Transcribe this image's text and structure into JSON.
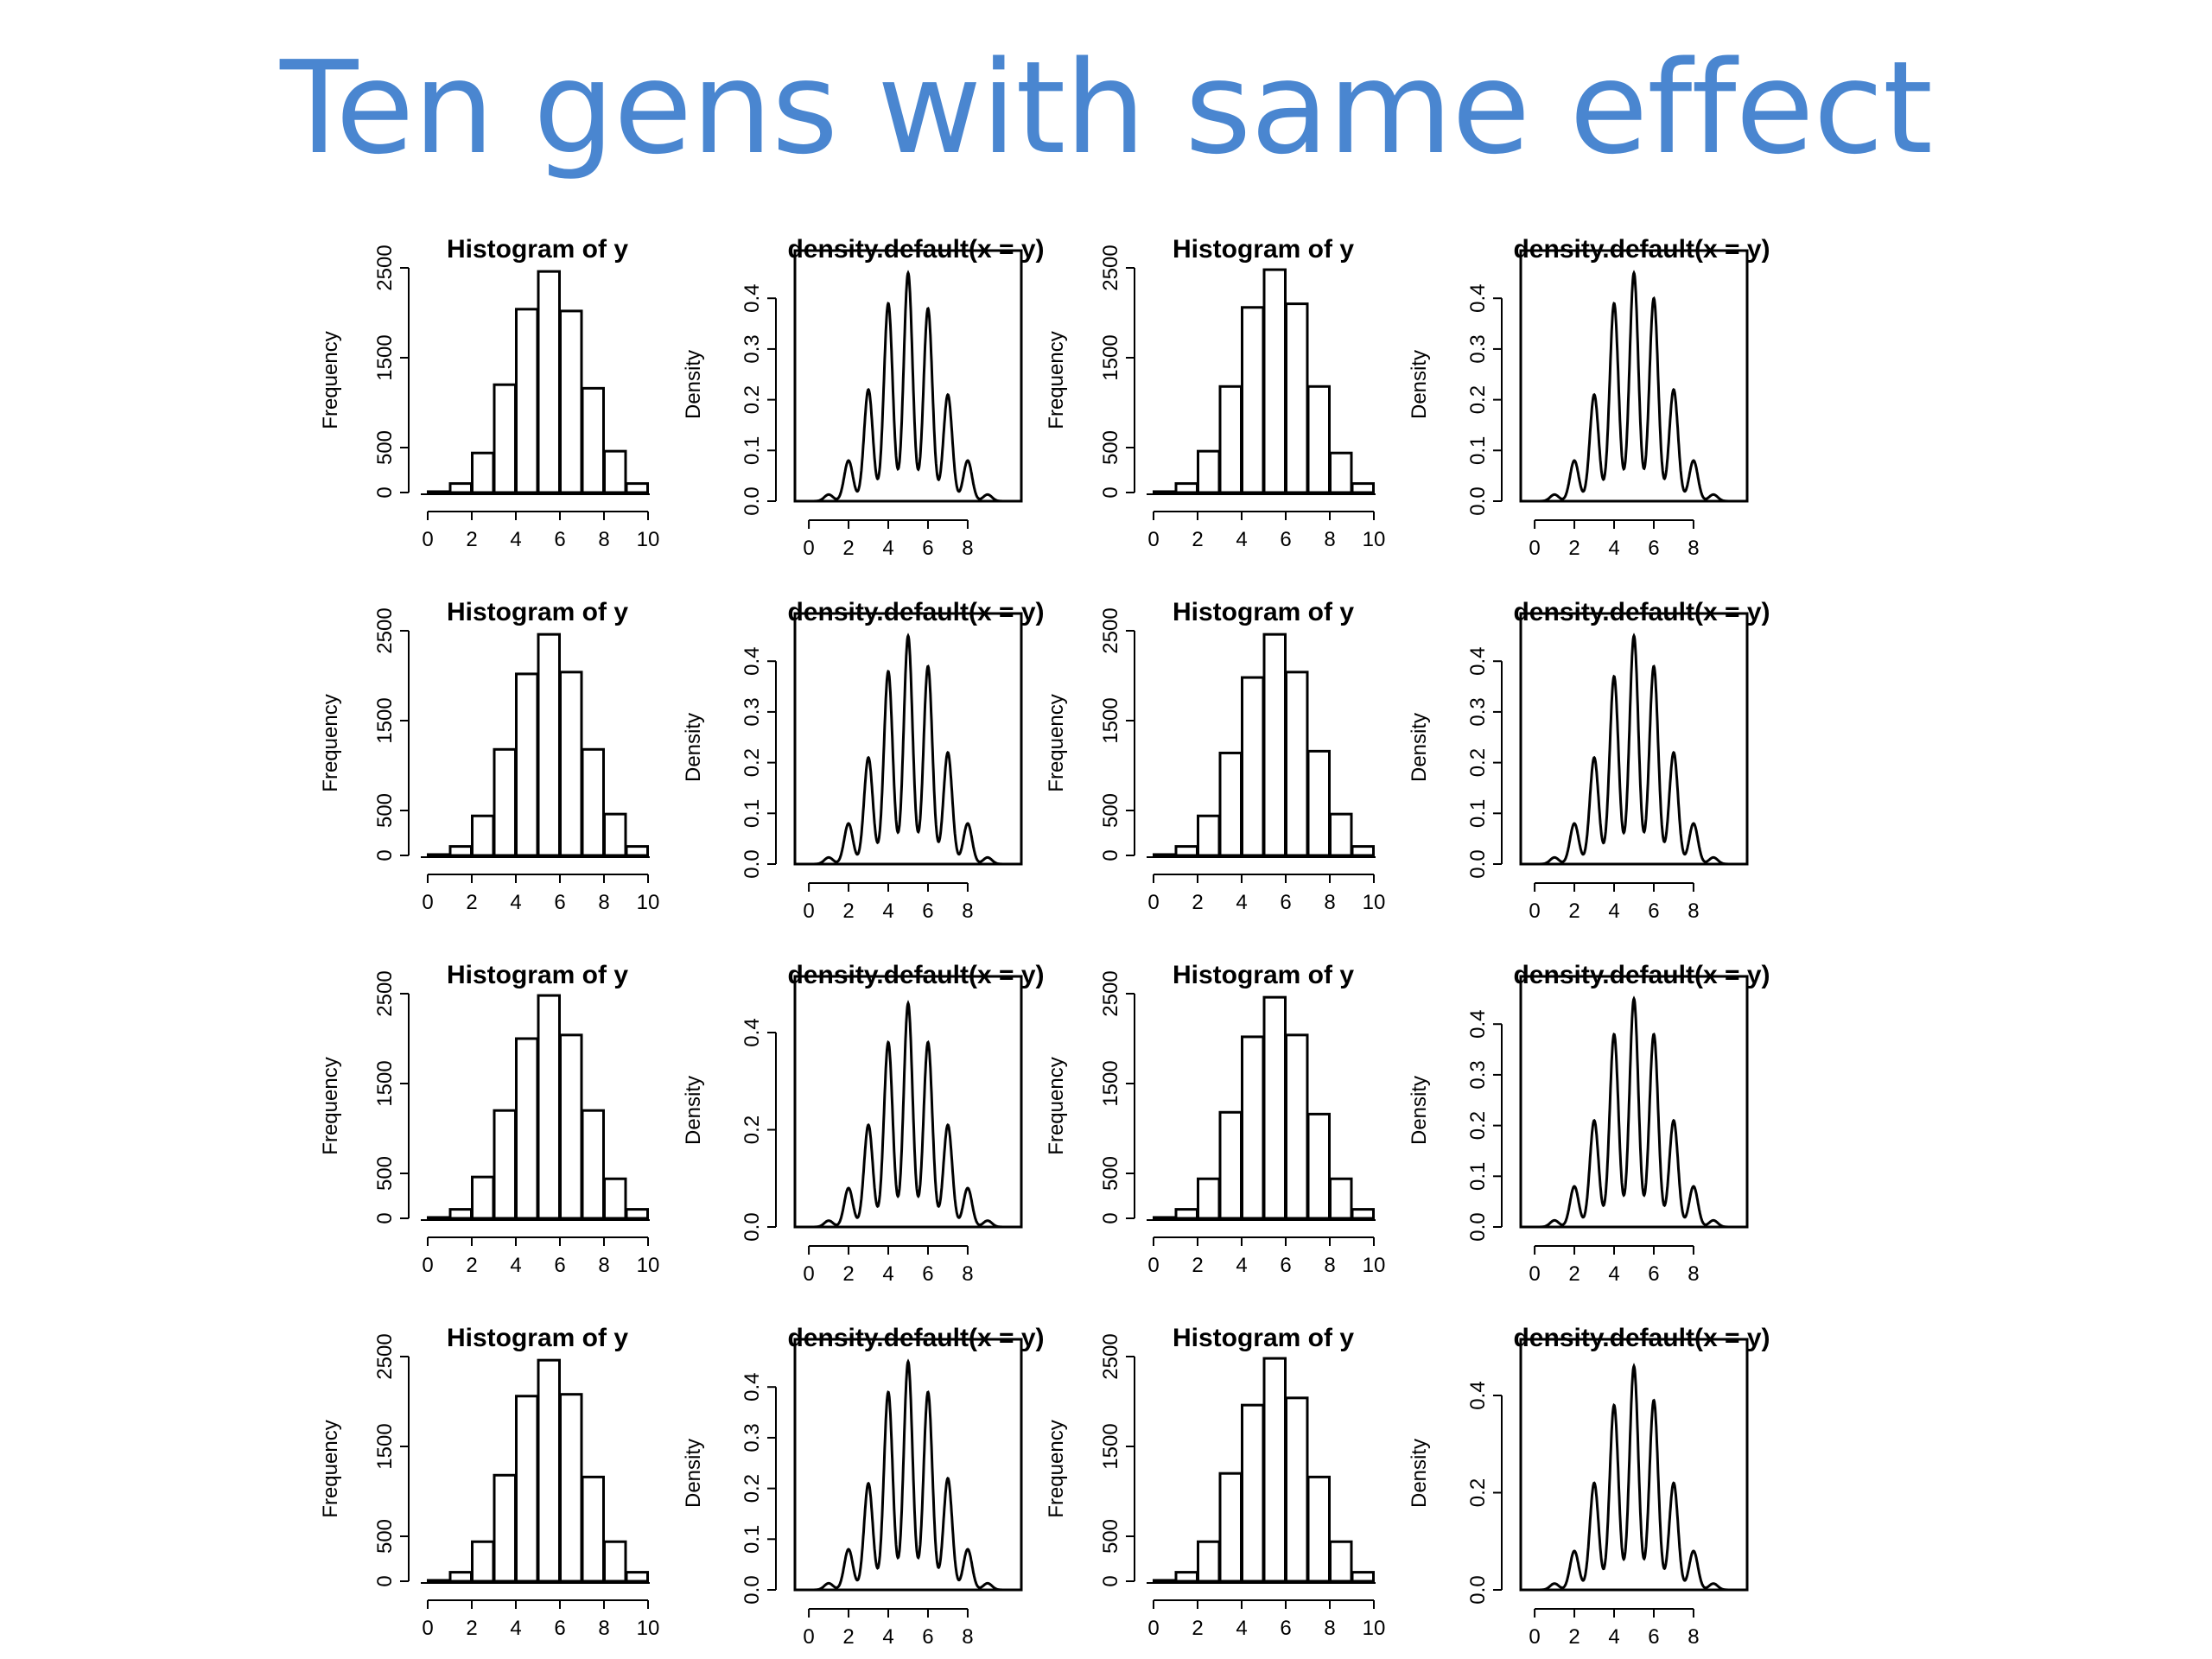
{
  "slide": {
    "title": "Ten gens with same effect"
  },
  "chart_data": [
    {
      "type": "bar",
      "kind": "histogram",
      "title": "Histogram of y",
      "xlabel": "",
      "ylabel": "Frequency",
      "xlim": [
        0,
        10
      ],
      "ylim": [
        0,
        2500
      ],
      "xticks": [
        0,
        2,
        4,
        6,
        8,
        10
      ],
      "yticks": [
        0,
        500,
        1500,
        2500
      ],
      "bins": [
        [
          0,
          1
        ],
        [
          1,
          2
        ],
        [
          2,
          3
        ],
        [
          3,
          4
        ],
        [
          4,
          5
        ],
        [
          5,
          6
        ],
        [
          6,
          7
        ],
        [
          7,
          8
        ],
        [
          8,
          9
        ],
        [
          9,
          10
        ]
      ],
      "values": [
        10,
        100,
        440,
        1200,
        2040,
        2460,
        2020,
        1160,
        460,
        100
      ],
      "grid": false,
      "legend": "none"
    },
    {
      "type": "line",
      "kind": "density",
      "title": "density.default(x = y)",
      "xlabel": "",
      "ylabel": "Density",
      "xlim": [
        -0.7,
        10.7
      ],
      "ylim": [
        0,
        0.46
      ],
      "xticks": [
        0,
        2,
        4,
        6,
        8
      ],
      "yticks": [
        0.0,
        0.1,
        0.2,
        0.3,
        0.4
      ],
      "peaks_x": [
        1,
        2,
        3,
        4,
        5,
        6,
        7,
        8,
        9
      ],
      "peaks_y": [
        0.013,
        0.08,
        0.22,
        0.39,
        0.45,
        0.38,
        0.21,
        0.08,
        0.013
      ],
      "grid": false,
      "legend": "none"
    },
    {
      "type": "bar",
      "kind": "histogram",
      "title": "Histogram of y",
      "xlabel": "",
      "ylabel": "Frequency",
      "xlim": [
        0,
        10
      ],
      "ylim": [
        0,
        2500
      ],
      "xticks": [
        0,
        2,
        4,
        6,
        8,
        10
      ],
      "yticks": [
        0,
        500,
        1500,
        2500
      ],
      "bins": [
        [
          0,
          1
        ],
        [
          1,
          2
        ],
        [
          2,
          3
        ],
        [
          3,
          4
        ],
        [
          4,
          5
        ],
        [
          5,
          6
        ],
        [
          6,
          7
        ],
        [
          7,
          8
        ],
        [
          8,
          9
        ],
        [
          9,
          10
        ]
      ],
      "values": [
        10,
        100,
        460,
        1180,
        2060,
        2480,
        2100,
        1180,
        440,
        100
      ],
      "grid": false,
      "legend": "none"
    },
    {
      "type": "line",
      "kind": "density",
      "title": "density.default(x = y)",
      "xlabel": "",
      "ylabel": "Density",
      "xlim": [
        -0.7,
        10.7
      ],
      "ylim": [
        0,
        0.46
      ],
      "xticks": [
        0,
        2,
        4,
        6,
        8
      ],
      "yticks": [
        0.0,
        0.1,
        0.2,
        0.3,
        0.4
      ],
      "peaks_x": [
        1,
        2,
        3,
        4,
        5,
        6,
        7,
        8,
        9
      ],
      "peaks_y": [
        0.013,
        0.08,
        0.21,
        0.39,
        0.45,
        0.4,
        0.22,
        0.08,
        0.013
      ],
      "grid": false,
      "legend": "none"
    },
    {
      "type": "bar",
      "kind": "histogram",
      "title": "Histogram of y",
      "xlabel": "",
      "ylabel": "Frequency",
      "xlim": [
        0,
        10
      ],
      "ylim": [
        0,
        2500
      ],
      "xticks": [
        0,
        2,
        4,
        6,
        8,
        10
      ],
      "yticks": [
        0,
        500,
        1500,
        2500
      ],
      "bins": [
        [
          0,
          1
        ],
        [
          1,
          2
        ],
        [
          2,
          3
        ],
        [
          3,
          4
        ],
        [
          4,
          5
        ],
        [
          5,
          6
        ],
        [
          6,
          7
        ],
        [
          7,
          8
        ],
        [
          8,
          9
        ],
        [
          9,
          10
        ]
      ],
      "values": [
        10,
        100,
        440,
        1180,
        2020,
        2460,
        2040,
        1180,
        460,
        100
      ],
      "grid": false,
      "legend": "none"
    },
    {
      "type": "line",
      "kind": "density",
      "title": "density.default(x = y)",
      "xlabel": "",
      "ylabel": "Density",
      "xlim": [
        -0.7,
        10.7
      ],
      "ylim": [
        0,
        0.46
      ],
      "xticks": [
        0,
        2,
        4,
        6,
        8
      ],
      "yticks": [
        0.0,
        0.1,
        0.2,
        0.3,
        0.4
      ],
      "peaks_x": [
        1,
        2,
        3,
        4,
        5,
        6,
        7,
        8,
        9
      ],
      "peaks_y": [
        0.013,
        0.08,
        0.21,
        0.38,
        0.45,
        0.39,
        0.22,
        0.08,
        0.013
      ],
      "grid": false,
      "legend": "none"
    },
    {
      "type": "bar",
      "kind": "histogram",
      "title": "Histogram of y",
      "xlabel": "",
      "ylabel": "Frequency",
      "xlim": [
        0,
        10
      ],
      "ylim": [
        0,
        2500
      ],
      "xticks": [
        0,
        2,
        4,
        6,
        8,
        10
      ],
      "yticks": [
        0,
        500,
        1500,
        2500
      ],
      "bins": [
        [
          0,
          1
        ],
        [
          1,
          2
        ],
        [
          2,
          3
        ],
        [
          3,
          4
        ],
        [
          4,
          5
        ],
        [
          5,
          6
        ],
        [
          6,
          7
        ],
        [
          7,
          8
        ],
        [
          8,
          9
        ],
        [
          9,
          10
        ]
      ],
      "values": [
        10,
        100,
        440,
        1140,
        1980,
        2460,
        2040,
        1160,
        460,
        100
      ],
      "grid": false,
      "legend": "none"
    },
    {
      "type": "line",
      "kind": "density",
      "title": "density.default(x = y)",
      "xlabel": "",
      "ylabel": "Density",
      "xlim": [
        -0.7,
        10.7
      ],
      "ylim": [
        0,
        0.46
      ],
      "xticks": [
        0,
        2,
        4,
        6,
        8
      ],
      "yticks": [
        0.0,
        0.1,
        0.2,
        0.3,
        0.4
      ],
      "peaks_x": [
        1,
        2,
        3,
        4,
        5,
        6,
        7,
        8,
        9
      ],
      "peaks_y": [
        0.013,
        0.08,
        0.21,
        0.37,
        0.45,
        0.39,
        0.22,
        0.08,
        0.013
      ],
      "grid": false,
      "legend": "none"
    },
    {
      "type": "bar",
      "kind": "histogram",
      "title": "Histogram of y",
      "xlabel": "",
      "ylabel": "Frequency",
      "xlim": [
        0,
        10
      ],
      "ylim": [
        0,
        2500
      ],
      "xticks": [
        0,
        2,
        4,
        6,
        8,
        10
      ],
      "yticks": [
        0,
        500,
        1500,
        2500
      ],
      "bins": [
        [
          0,
          1
        ],
        [
          1,
          2
        ],
        [
          2,
          3
        ],
        [
          3,
          4
        ],
        [
          4,
          5
        ],
        [
          5,
          6
        ],
        [
          6,
          7
        ],
        [
          7,
          8
        ],
        [
          8,
          9
        ],
        [
          9,
          10
        ]
      ],
      "values": [
        10,
        100,
        460,
        1200,
        2000,
        2480,
        2040,
        1200,
        440,
        100
      ],
      "grid": false,
      "legend": "none"
    },
    {
      "type": "line",
      "kind": "density",
      "title": "density.default(x = y)",
      "xlabel": "",
      "ylabel": "Density",
      "xlim": [
        -0.7,
        10.7
      ],
      "ylim": [
        0,
        0.48
      ],
      "xticks": [
        0,
        2,
        4,
        6,
        8
      ],
      "yticks": [
        0.0,
        0.2,
        0.4
      ],
      "peaks_x": [
        1,
        2,
        3,
        4,
        5,
        6,
        7,
        8,
        9
      ],
      "peaks_y": [
        0.013,
        0.08,
        0.21,
        0.38,
        0.46,
        0.38,
        0.21,
        0.08,
        0.013
      ],
      "grid": false,
      "legend": "none"
    },
    {
      "type": "bar",
      "kind": "histogram",
      "title": "Histogram of y",
      "xlabel": "",
      "ylabel": "Frequency",
      "xlim": [
        0,
        10
      ],
      "ylim": [
        0,
        2500
      ],
      "xticks": [
        0,
        2,
        4,
        6,
        8,
        10
      ],
      "yticks": [
        0,
        500,
        1500,
        2500
      ],
      "bins": [
        [
          0,
          1
        ],
        [
          1,
          2
        ],
        [
          2,
          3
        ],
        [
          3,
          4
        ],
        [
          4,
          5
        ],
        [
          5,
          6
        ],
        [
          6,
          7
        ],
        [
          7,
          8
        ],
        [
          8,
          9
        ],
        [
          9,
          10
        ]
      ],
      "values": [
        10,
        100,
        440,
        1180,
        2020,
        2460,
        2040,
        1160,
        440,
        100
      ],
      "grid": false,
      "legend": "none"
    },
    {
      "type": "line",
      "kind": "density",
      "title": "density.default(x = y)",
      "xlabel": "",
      "ylabel": "Density",
      "xlim": [
        -0.7,
        10.7
      ],
      "ylim": [
        0,
        0.46
      ],
      "xticks": [
        0,
        2,
        4,
        6,
        8
      ],
      "yticks": [
        0.0,
        0.1,
        0.2,
        0.3,
        0.4
      ],
      "peaks_x": [
        1,
        2,
        3,
        4,
        5,
        6,
        7,
        8,
        9
      ],
      "peaks_y": [
        0.013,
        0.08,
        0.21,
        0.38,
        0.45,
        0.38,
        0.21,
        0.08,
        0.013
      ],
      "grid": false,
      "legend": "none"
    },
    {
      "type": "bar",
      "kind": "histogram",
      "title": "Histogram of y",
      "xlabel": "",
      "ylabel": "Frequency",
      "xlim": [
        0,
        10
      ],
      "ylim": [
        0,
        2500
      ],
      "xticks": [
        0,
        2,
        4,
        6,
        8,
        10
      ],
      "yticks": [
        0,
        500,
        1500,
        2500
      ],
      "bins": [
        [
          0,
          1
        ],
        [
          1,
          2
        ],
        [
          2,
          3
        ],
        [
          3,
          4
        ],
        [
          4,
          5
        ],
        [
          5,
          6
        ],
        [
          6,
          7
        ],
        [
          7,
          8
        ],
        [
          8,
          9
        ],
        [
          9,
          10
        ]
      ],
      "values": [
        10,
        100,
        440,
        1180,
        2060,
        2460,
        2080,
        1160,
        440,
        100
      ],
      "grid": false,
      "legend": "none"
    },
    {
      "type": "line",
      "kind": "density",
      "title": "density.default(x = y)",
      "xlabel": "",
      "ylabel": "Density",
      "xlim": [
        -0.7,
        10.7
      ],
      "ylim": [
        0,
        0.46
      ],
      "xticks": [
        0,
        2,
        4,
        6,
        8
      ],
      "yticks": [
        0.0,
        0.1,
        0.2,
        0.3,
        0.4
      ],
      "peaks_x": [
        1,
        2,
        3,
        4,
        5,
        6,
        7,
        8,
        9
      ],
      "peaks_y": [
        0.013,
        0.08,
        0.21,
        0.39,
        0.45,
        0.39,
        0.22,
        0.08,
        0.013
      ],
      "grid": false,
      "legend": "none"
    },
    {
      "type": "bar",
      "kind": "histogram",
      "title": "Histogram of y",
      "xlabel": "",
      "ylabel": "Frequency",
      "xlim": [
        0,
        10
      ],
      "ylim": [
        0,
        2500
      ],
      "xticks": [
        0,
        2,
        4,
        6,
        8,
        10
      ],
      "yticks": [
        0,
        500,
        1500,
        2500
      ],
      "bins": [
        [
          0,
          1
        ],
        [
          1,
          2
        ],
        [
          2,
          3
        ],
        [
          3,
          4
        ],
        [
          4,
          5
        ],
        [
          5,
          6
        ],
        [
          6,
          7
        ],
        [
          7,
          8
        ],
        [
          8,
          9
        ],
        [
          9,
          10
        ]
      ],
      "values": [
        10,
        100,
        440,
        1200,
        1960,
        2480,
        2040,
        1160,
        440,
        100
      ],
      "grid": false,
      "legend": "none"
    },
    {
      "type": "line",
      "kind": "density",
      "title": "density.default(x = y)",
      "xlabel": "",
      "ylabel": "Density",
      "xlim": [
        -0.7,
        10.7
      ],
      "ylim": [
        0,
        0.48
      ],
      "xticks": [
        0,
        2,
        4,
        6,
        8
      ],
      "yticks": [
        0.0,
        0.2,
        0.4
      ],
      "peaks_x": [
        1,
        2,
        3,
        4,
        5,
        6,
        7,
        8,
        9
      ],
      "peaks_y": [
        0.013,
        0.08,
        0.22,
        0.38,
        0.46,
        0.39,
        0.22,
        0.08,
        0.013
      ],
      "grid": false,
      "legend": "none"
    }
  ]
}
